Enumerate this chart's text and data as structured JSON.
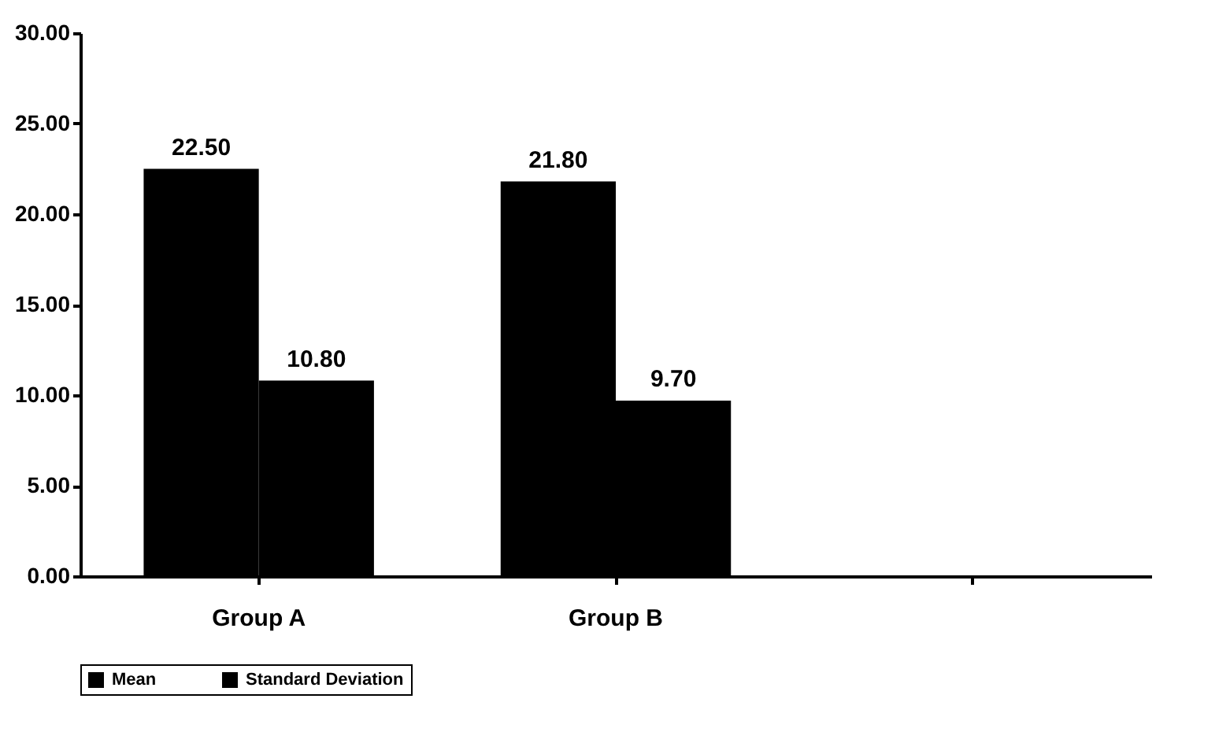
{
  "chart_data": {
    "type": "bar",
    "categories": [
      "Group A",
      "Group B",
      null
    ],
    "series": [
      {
        "name": "Mean",
        "color": "#000000",
        "values": [
          22.5,
          21.8,
          null
        ],
        "value_labels": [
          "22.50",
          "21.80",
          null
        ]
      },
      {
        "name": "Standard Deviation",
        "color": "#000000",
        "values": [
          10.8,
          9.7,
          null
        ],
        "value_labels": [
          "10.80",
          "9.70",
          null
        ]
      }
    ],
    "ylim": [
      0,
      30
    ],
    "yticks": [
      {
        "value": 0,
        "label": "0.00"
      },
      {
        "value": 5,
        "label": "5.00"
      },
      {
        "value": 10,
        "label": "10.00"
      },
      {
        "value": 15,
        "label": "15.00"
      },
      {
        "value": 20,
        "label": "20.00"
      },
      {
        "value": 25,
        "label": "25.00"
      },
      {
        "value": 30,
        "label": "30.00"
      }
    ],
    "grid": false,
    "legend": "bottom"
  }
}
